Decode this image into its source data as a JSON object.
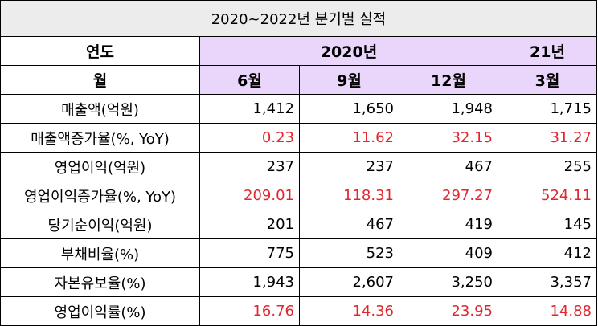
{
  "title": "2020~2022년 분기별 실적",
  "header": {
    "year_label": "연도",
    "year_2020": "2020년",
    "year_21": "21년",
    "month_label": "월",
    "months": [
      "6월",
      "9월",
      "12월",
      "3월"
    ]
  },
  "rows": [
    {
      "label": "매출액(억원)",
      "values": [
        "1,412",
        "1,650",
        "1,948",
        "1,715"
      ],
      "highlight": false
    },
    {
      "label": "매출액증가율(%, YoY)",
      "values": [
        "0.23",
        "11.62",
        "32.15",
        "31.27"
      ],
      "highlight": true
    },
    {
      "label": "영업이익(억원)",
      "values": [
        "237",
        "237",
        "467",
        "255"
      ],
      "highlight": false
    },
    {
      "label": "영업이익증가율(%, YoY)",
      "values": [
        "209.01",
        "118.31",
        "297.27",
        "524.11"
      ],
      "highlight": true
    },
    {
      "label": "당기순이익(억원)",
      "values": [
        "201",
        "467",
        "419",
        "145"
      ],
      "highlight": false
    },
    {
      "label": "부채비율(%)",
      "values": [
        "775",
        "523",
        "409",
        "412"
      ],
      "highlight": false
    },
    {
      "label": "자본유보율(%)",
      "values": [
        "1,943",
        "2,607",
        "3,250",
        "3,357"
      ],
      "highlight": false
    },
    {
      "label": "영업이익률(%)",
      "values": [
        "16.76",
        "14.36",
        "23.95",
        "14.88"
      ],
      "highlight": true
    }
  ],
  "colors": {
    "header_purple": "#e9d6fa",
    "title_gray": "#ececec",
    "highlight_red": "#e0262e"
  }
}
